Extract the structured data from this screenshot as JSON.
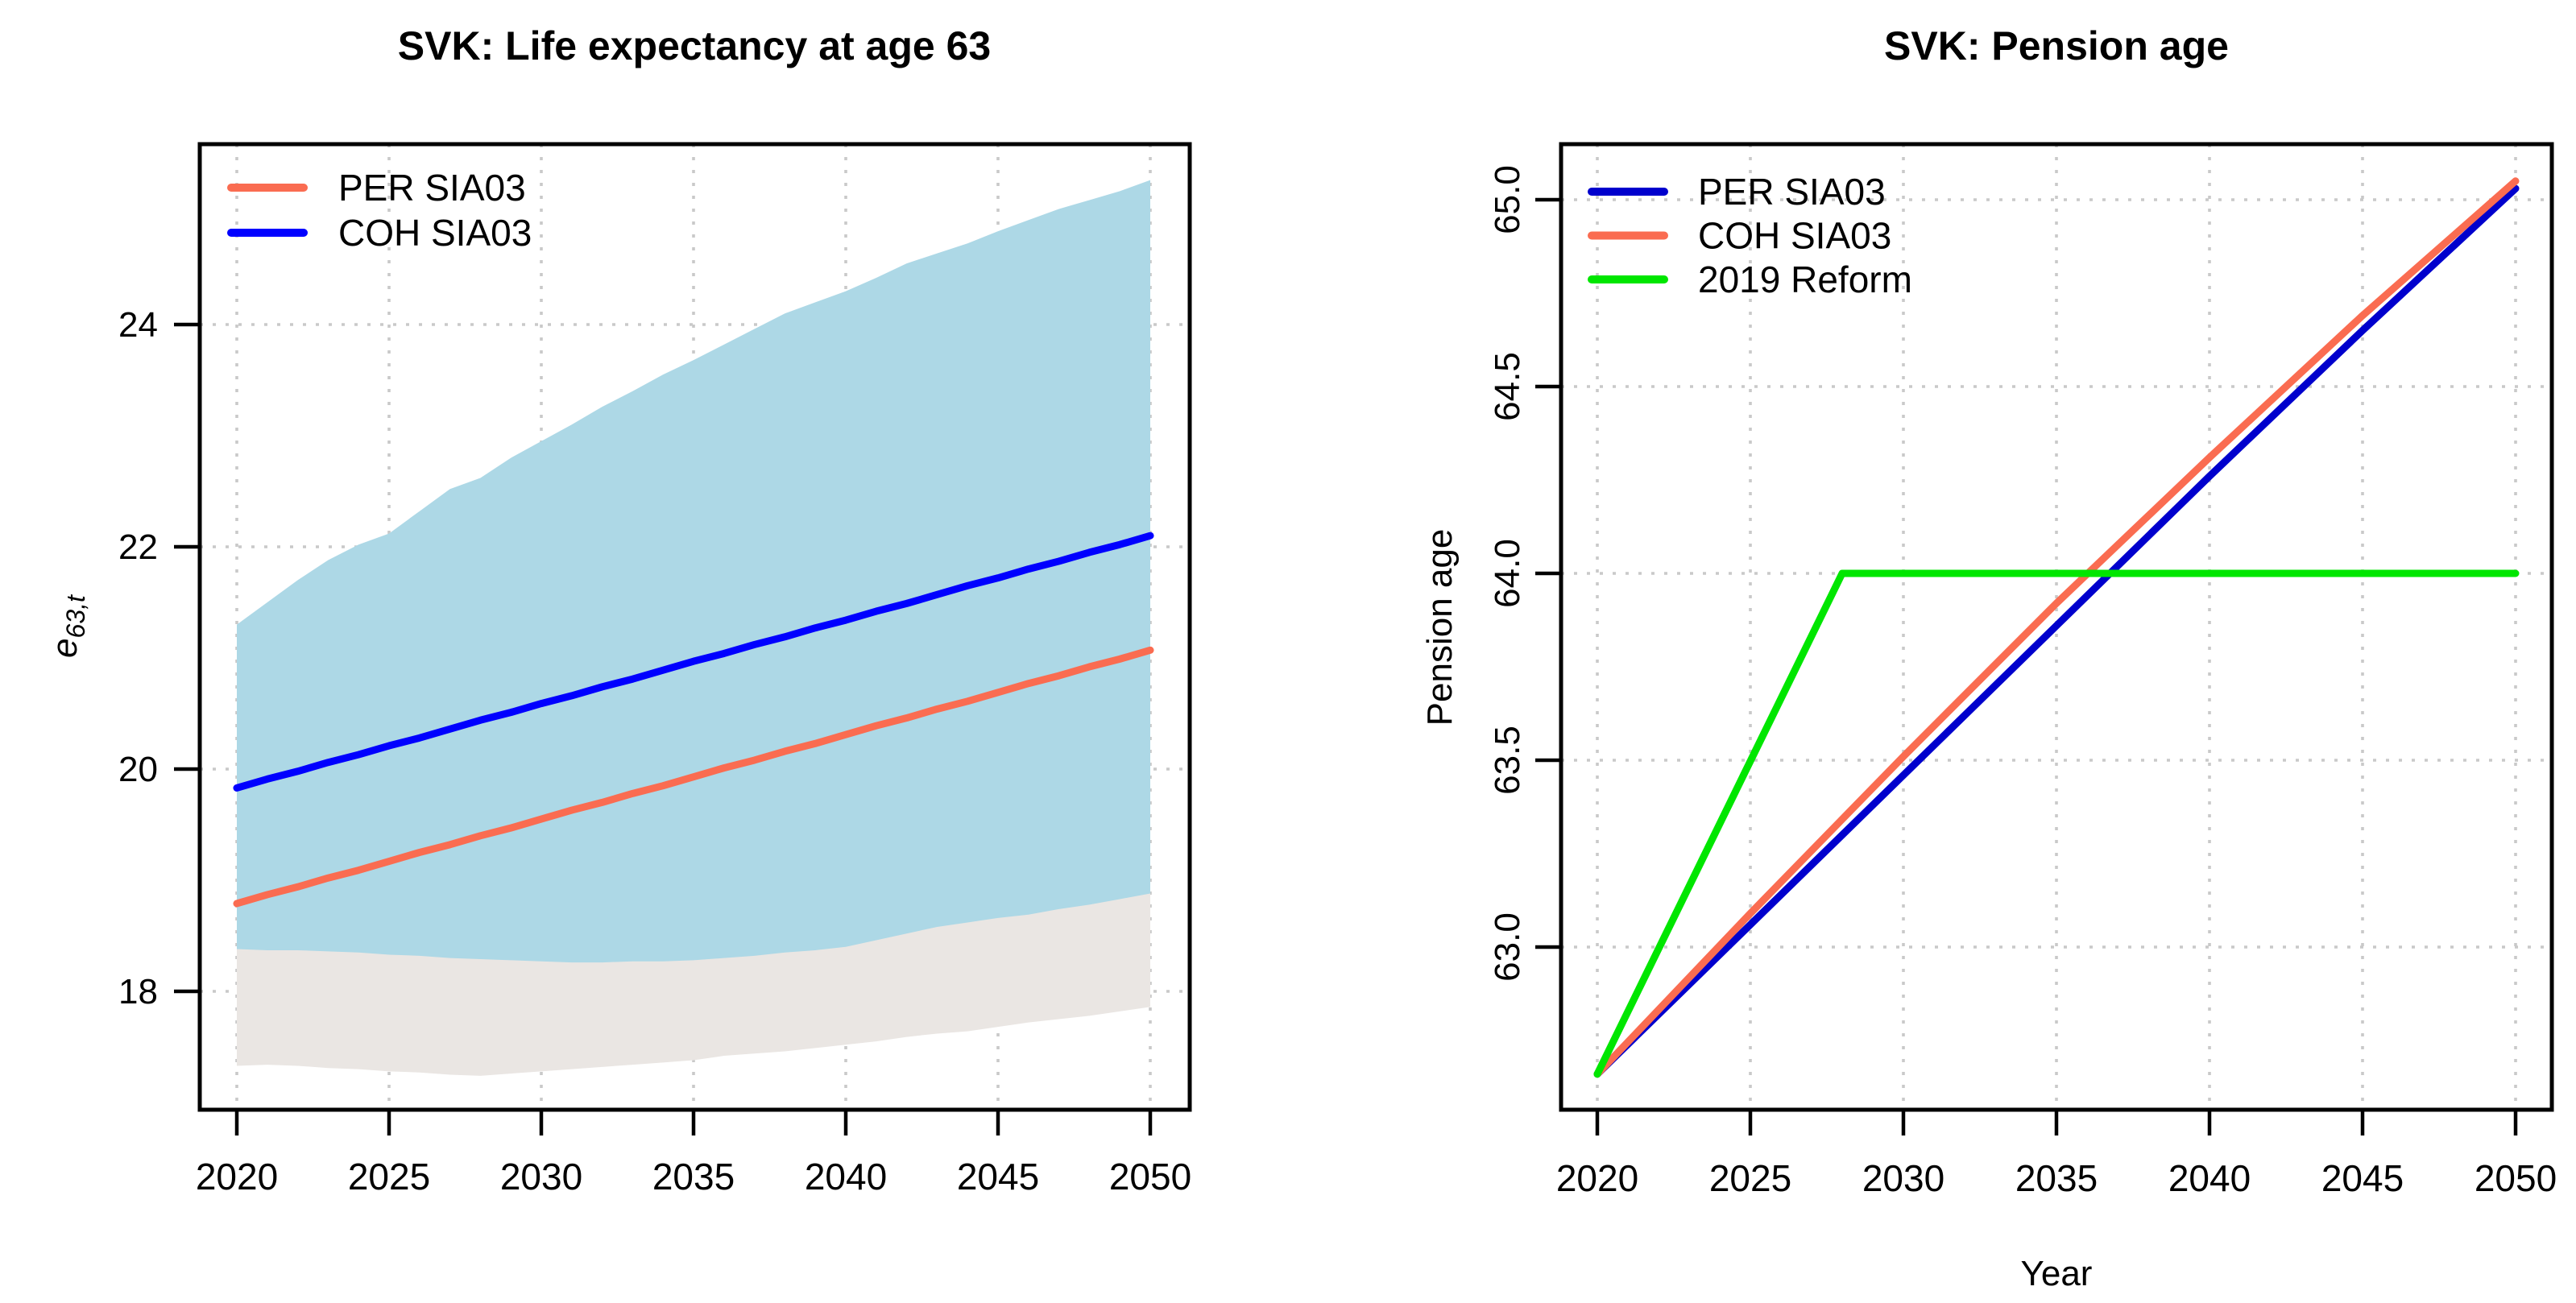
{
  "colors": {
    "background": "#FFFFFF",
    "grid": "#C9C9C9",
    "axis": "#000000",
    "band_blue": "#ADD8E6",
    "band_gray": "#EAE6E3",
    "per_left": "#FA6C51",
    "coh_left": "#0000FF",
    "per_right": "#0000CD",
    "coh_right": "#FA6C51",
    "reform_green": "#00E600"
  },
  "chart_data": [
    {
      "type": "area",
      "title": "SVK: Life expectancy at age 63",
      "ylabel_main": "e",
      "ylabel_sub": "63,t",
      "xlabel": "",
      "xlim": [
        2018.8,
        2051.2
      ],
      "ylim": [
        16.93,
        25.62
      ],
      "grid": "dotted",
      "xticks": {
        "values": [
          2020,
          2025,
          2030,
          2035,
          2040,
          2045,
          2050
        ],
        "labels": [
          "2020",
          "2025",
          "2030",
          "2035",
          "2040",
          "2045",
          "2050"
        ]
      },
      "yticks": {
        "values": [
          18,
          20,
          22,
          24
        ],
        "labels": [
          "18",
          "20",
          "22",
          "24"
        ]
      },
      "legend": {
        "position": "topleft",
        "entries": [
          {
            "label": "PER SIA03",
            "color_key": "per_left"
          },
          {
            "label": "COH SIA03",
            "color_key": "coh_left"
          }
        ]
      },
      "x": [
        2020,
        2021,
        2022,
        2023,
        2024,
        2025,
        2026,
        2027,
        2028,
        2029,
        2030,
        2031,
        2032,
        2033,
        2034,
        2035,
        2036,
        2037,
        2038,
        2039,
        2040,
        2041,
        2042,
        2043,
        2044,
        2045,
        2046,
        2047,
        2048,
        2049,
        2050
      ],
      "bands": [
        {
          "name": "per-prediction-interval",
          "color_key": "band_gray",
          "tuck": 0.08,
          "top": [
            18.38,
            18.37,
            18.37,
            18.36,
            18.35,
            18.33,
            18.32,
            18.3,
            18.29,
            18.28,
            18.27,
            18.26,
            18.26,
            18.27,
            18.27,
            18.28,
            18.3,
            18.32,
            18.35,
            18.37,
            18.4,
            18.46,
            18.52,
            18.58,
            18.62,
            18.66,
            18.69,
            18.74,
            18.78,
            18.83,
            18.88
          ],
          "bottom": [
            17.33,
            17.34,
            17.33,
            17.31,
            17.3,
            17.28,
            17.27,
            17.25,
            17.24,
            17.26,
            17.28,
            17.3,
            17.32,
            17.34,
            17.36,
            17.38,
            17.42,
            17.44,
            17.46,
            17.49,
            17.52,
            17.55,
            17.59,
            17.62,
            17.64,
            17.68,
            17.72,
            17.75,
            17.78,
            17.82,
            17.86
          ]
        },
        {
          "name": "coh-prediction-interval",
          "color_key": "band_blue",
          "tuck": 0,
          "top": [
            21.3,
            21.5,
            21.7,
            21.88,
            22.02,
            22.12,
            22.32,
            22.52,
            22.62,
            22.8,
            22.95,
            23.1,
            23.26,
            23.4,
            23.55,
            23.68,
            23.82,
            23.96,
            24.1,
            24.2,
            24.3,
            24.42,
            24.55,
            24.64,
            24.73,
            24.84,
            24.94,
            25.04,
            25.12,
            25.2,
            25.3
          ],
          "bottom": [
            18.38,
            18.37,
            18.37,
            18.36,
            18.35,
            18.33,
            18.32,
            18.3,
            18.29,
            18.28,
            18.27,
            18.26,
            18.26,
            18.27,
            18.27,
            18.28,
            18.3,
            18.32,
            18.35,
            18.37,
            18.4,
            18.46,
            18.52,
            18.58,
            18.62,
            18.66,
            18.69,
            18.74,
            18.78,
            18.83,
            18.88
          ]
        }
      ],
      "series": [
        {
          "name": "COH SIA03",
          "color_key": "coh_left",
          "y": [
            19.83,
            19.91,
            19.98,
            20.06,
            20.13,
            20.21,
            20.28,
            20.36,
            20.44,
            20.51,
            20.59,
            20.66,
            20.74,
            20.81,
            20.89,
            20.97,
            21.04,
            21.12,
            21.19,
            21.27,
            21.34,
            21.42,
            21.49,
            21.57,
            21.65,
            21.72,
            21.8,
            21.87,
            21.95,
            22.02,
            22.1
          ]
        },
        {
          "name": "PER SIA03",
          "color_key": "per_left",
          "y": [
            18.79,
            18.87,
            18.94,
            19.02,
            19.09,
            19.17,
            19.25,
            19.32,
            19.4,
            19.47,
            19.55,
            19.63,
            19.7,
            19.78,
            19.85,
            19.93,
            20.01,
            20.08,
            20.16,
            20.23,
            20.31,
            20.39,
            20.46,
            20.54,
            20.61,
            20.69,
            20.77,
            20.84,
            20.92,
            20.99,
            21.07
          ]
        }
      ]
    },
    {
      "type": "line",
      "title": "SVK: Pension age",
      "ylabel": "Pension age",
      "xlabel": "Year",
      "xlim": [
        2018.8,
        2051.2
      ],
      "ylim": [
        62.56,
        65.15
      ],
      "grid": "dotted",
      "xticks": {
        "values": [
          2020,
          2025,
          2030,
          2035,
          2040,
          2045,
          2050
        ],
        "labels": [
          "2020",
          "2025",
          "2030",
          "2035",
          "2040",
          "2045",
          "2050"
        ]
      },
      "yticks": {
        "values": [
          63.0,
          63.5,
          64.0,
          64.5,
          65.0
        ],
        "labels": [
          "63.0",
          "63.5",
          "64.0",
          "64.5",
          "65.0"
        ]
      },
      "legend": {
        "position": "topleft",
        "entries": [
          {
            "label": "PER SIA03",
            "color_key": "per_right"
          },
          {
            "label": "COH SIA03",
            "color_key": "coh_right"
          },
          {
            "label": "2019 Reform",
            "color_key": "reform_green"
          }
        ]
      },
      "series": [
        {
          "name": "PER SIA03",
          "color_key": "per_right",
          "x": [
            2020,
            2025,
            2030,
            2035,
            2040,
            2045,
            2050
          ],
          "y": [
            62.66,
            63.06,
            63.46,
            63.86,
            64.26,
            64.65,
            65.03
          ]
        },
        {
          "name": "COH SIA03",
          "color_key": "coh_right",
          "x": [
            2020,
            2025,
            2030,
            2035,
            2040,
            2045,
            2050
          ],
          "y": [
            62.66,
            63.09,
            63.51,
            63.92,
            64.31,
            64.69,
            65.05
          ]
        },
        {
          "name": "2019 Reform",
          "color_key": "reform_green",
          "x": [
            2020,
            2028,
            2050
          ],
          "y": [
            62.66,
            64.0,
            64.0
          ]
        }
      ]
    }
  ]
}
